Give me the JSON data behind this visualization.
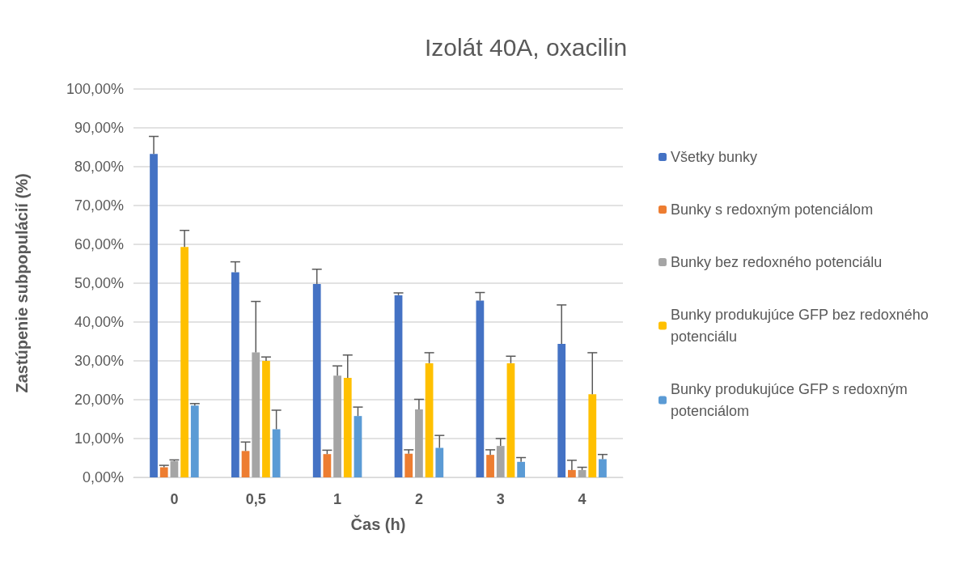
{
  "chart_data": {
    "type": "bar",
    "title": "Izolát 40A, oxacilin",
    "xlabel": "Čas (h)",
    "ylabel": "Zastúpenie subpopulácií (%)",
    "categories": [
      "0",
      "0,5",
      "1",
      "2",
      "3",
      "4"
    ],
    "series": [
      {
        "name": "Všetky bunky",
        "color": "#4472c4",
        "values": [
          83.3,
          52.8,
          49.8,
          46.9,
          45.5,
          34.4
        ],
        "errors": [
          [
            83.3,
            87.8
          ],
          [
            52.8,
            55.5
          ],
          [
            49.8,
            53.6
          ],
          [
            46.9,
            47.5
          ],
          [
            45.5,
            47.6
          ],
          [
            34.4,
            44.4
          ]
        ]
      },
      {
        "name": "Bunky s redoxným potenciálom",
        "color": "#ed7d31",
        "values": [
          2.6,
          6.8,
          6.0,
          6.1,
          5.8,
          1.9
        ],
        "errors": [
          [
            2.6,
            3.1
          ],
          [
            6.8,
            9.1
          ],
          [
            6.0,
            7.0
          ],
          [
            6.1,
            7.1
          ],
          [
            5.8,
            7.1
          ],
          [
            1.9,
            4.4
          ]
        ]
      },
      {
        "name": "Bunky bez redoxného potenciálu",
        "color": "#a5a5a5",
        "values": [
          4.2,
          32.2,
          26.2,
          17.5,
          8.1,
          1.9
        ],
        "errors": [
          [
            4.2,
            4.5
          ],
          [
            32.2,
            45.3
          ],
          [
            26.2,
            28.7
          ],
          [
            17.5,
            20.1
          ],
          [
            8.1,
            10.0
          ],
          [
            1.9,
            2.6
          ]
        ]
      },
      {
        "name": "Bunky produkujúce GFP bez redoxného potenciálu",
        "color": "#ffc000",
        "values": [
          59.3,
          30.0,
          25.6,
          29.4,
          29.4,
          21.4
        ],
        "errors": [
          [
            59.3,
            63.6
          ],
          [
            30.0,
            31.0
          ],
          [
            25.6,
            31.5
          ],
          [
            29.4,
            32.1
          ],
          [
            29.4,
            31.2
          ],
          [
            21.4,
            32.1
          ]
        ]
      },
      {
        "name": "Bunky produkujúce GFP s redoxným potenciálom",
        "color": "#5b9bd5",
        "values": [
          18.5,
          12.4,
          15.8,
          7.6,
          4.0,
          4.7
        ],
        "errors": [
          [
            18.5,
            19.0
          ],
          [
            12.4,
            17.3
          ],
          [
            15.8,
            18.1
          ],
          [
            7.6,
            10.8
          ],
          [
            4.0,
            5.1
          ],
          [
            4.7,
            5.9
          ]
        ]
      }
    ],
    "ylim": [
      0,
      100
    ],
    "yticks": [
      {
        "value": 0,
        "label": "0,00%"
      },
      {
        "value": 10,
        "label": "10,00%"
      },
      {
        "value": 20,
        "label": "20,00%"
      },
      {
        "value": 30,
        "label": "30,00%"
      },
      {
        "value": 40,
        "label": "40,00%"
      },
      {
        "value": 50,
        "label": "50,00%"
      },
      {
        "value": 60,
        "label": "60,00%"
      },
      {
        "value": 70,
        "label": "70,00%"
      },
      {
        "value": 80,
        "label": "80,00%"
      },
      {
        "value": 90,
        "label": "90,00%"
      },
      {
        "value": 100,
        "label": "100,00%"
      }
    ],
    "grid": "y",
    "legend": "right"
  }
}
